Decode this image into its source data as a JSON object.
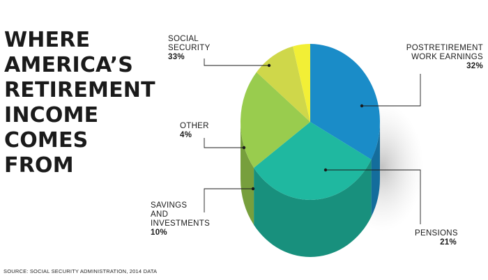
{
  "title_lines": [
    "WHERE",
    "AMERICA’S",
    "RETIREMENT",
    "INCOME",
    "COMES",
    "FROM"
  ],
  "source": "SOURCE: SOCIAL SECURITY ADMINISTRATION, 2014 DATA",
  "chart_data": {
    "type": "pie",
    "title": "WHERE AMERICA’S RETIREMENT INCOME COMES FROM",
    "slices": [
      {
        "label": "SOCIAL\nSECURITY",
        "pct_label": "33%",
        "value": 33,
        "color": "#1a8cc8"
      },
      {
        "label": "POSTRETIREMENT\nWORK EARNINGS",
        "pct_label": "32%",
        "value": 32,
        "color": "#1fb8a0"
      },
      {
        "label": "PENSIONS",
        "pct_label": "21%",
        "value": 21,
        "color": "#99cc4e"
      },
      {
        "label": "SAVINGS\nAND\nINVESTMENTS",
        "pct_label": "10%",
        "value": 10,
        "color": "#cfd74a"
      },
      {
        "label": "OTHER",
        "pct_label": "4%",
        "value": 4,
        "color": "#f2ef36"
      }
    ]
  }
}
